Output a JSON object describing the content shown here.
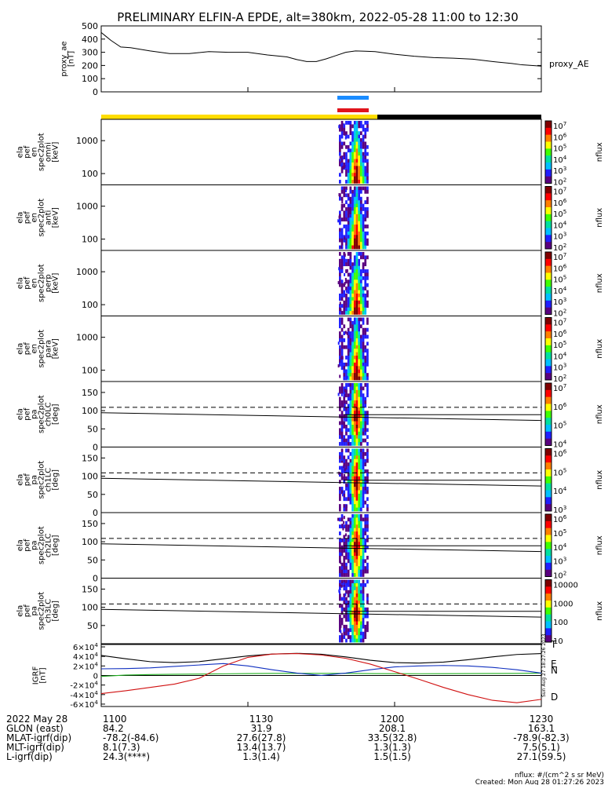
{
  "title": "PRELIMINARY ELFIN-A EPDE, alt=380km, 2022-05-28 11:00 to 12:30",
  "footer": {
    "units": "nflux: #/(cm^2 s sr MeV)",
    "created": "Created: Mon Aug 28 01:27:26 2023",
    "side_stamp": "Sun Aug 27 18:27:26 2023"
  },
  "colors": {
    "yellow_bar": "#ffdd00",
    "black_bar": "#000000",
    "blue_bar": "#1a8cff",
    "red_bar": "#e0141c",
    "trace_black": "#000000",
    "trace_blue": "#1030c0",
    "trace_green": "#22b022",
    "trace_red": "#d01010",
    "colorbar": [
      "#ffffff",
      "#5a0080",
      "#2020ff",
      "#00c0ff",
      "#00e0a0",
      "#40ff00",
      "#ffff00",
      "#ff8000",
      "#ff0000",
      "#800000"
    ]
  },
  "time_axis": {
    "ticks": [
      "1100",
      "1130",
      "1200",
      "1230"
    ],
    "rows": [
      {
        "label": "2022 May 28",
        "values": [
          "1100",
          "1130",
          "1200",
          "1230"
        ]
      },
      {
        "label": "GLON (east)",
        "values": [
          "84.2",
          "31.9",
          "208.1",
          "163.1"
        ]
      },
      {
        "label": "MLAT-igrf(dip)",
        "values": [
          "-78.2(-84.6)",
          "27.6(27.8)",
          "33.5(32.8)",
          "-78.9(-82.3)"
        ]
      },
      {
        "label": "MLT-igrf(dip)",
        "values": [
          "8.1(7.3)",
          "13.4(13.7)",
          "1.3(1.3)",
          "7.5(5.1)"
        ]
      },
      {
        "label": "L-igrf(dip)",
        "values": [
          "24.3(****)",
          "1.3(1.4)",
          "1.5(1.5)",
          "27.1(59.5)"
        ]
      }
    ]
  },
  "chart_data": [
    {
      "type": "line",
      "name": "proxy_ae",
      "ylabel_lines": [
        "proxy_ae",
        "[nT]"
      ],
      "right_label": "proxy_AE",
      "ylim": [
        0,
        500
      ],
      "yticks": [
        "500",
        "400",
        "300",
        "200",
        "100",
        "0"
      ],
      "x_minutes": [
        0,
        1,
        2,
        4,
        6,
        10,
        14,
        18,
        22,
        26,
        30,
        34,
        38,
        40,
        42,
        44,
        46,
        48,
        50,
        52,
        54,
        56,
        60,
        64,
        68,
        72,
        76,
        80,
        84,
        86,
        90
      ],
      "values": [
        450,
        420,
        390,
        340,
        335,
        310,
        290,
        290,
        305,
        300,
        300,
        280,
        265,
        245,
        230,
        230,
        250,
        275,
        300,
        310,
        308,
        305,
        285,
        270,
        260,
        255,
        248,
        230,
        215,
        205,
        195
      ]
    },
    {
      "type": "heatmap",
      "ylabel_lines": [
        "ela",
        "pef",
        "en",
        "spec2plot",
        "omni",
        "[keV]"
      ],
      "yticks": [
        "1000",
        "100"
      ],
      "scale": "log",
      "colorbar_label": "nflux",
      "colorbar_ticks": [
        "10^7",
        "10^6",
        "10^5",
        "10^4",
        "10^3",
        "10^2"
      ]
    },
    {
      "type": "heatmap",
      "ylabel_lines": [
        "ela",
        "pef",
        "en",
        "spec2plot",
        "anti",
        "[keV]"
      ],
      "yticks": [
        "1000",
        "100"
      ],
      "scale": "log",
      "colorbar_label": "nflux",
      "colorbar_ticks": [
        "10^7",
        "10^6",
        "10^5",
        "10^4",
        "10^3",
        "10^2"
      ]
    },
    {
      "type": "heatmap",
      "ylabel_lines": [
        "ela",
        "pef",
        "en",
        "spec2plot",
        "perp",
        "[keV]"
      ],
      "yticks": [
        "1000",
        "100"
      ],
      "scale": "log",
      "colorbar_label": "nflux",
      "colorbar_ticks": [
        "10^7",
        "10^6",
        "10^5",
        "10^4",
        "10^3",
        "10^2"
      ]
    },
    {
      "type": "heatmap",
      "ylabel_lines": [
        "ela",
        "pef",
        "en",
        "spec2plot",
        "para",
        "[keV]"
      ],
      "yticks": [
        "1000",
        "100"
      ],
      "scale": "log",
      "colorbar_label": "nflux",
      "colorbar_ticks": [
        "10^7",
        "10^6",
        "10^5",
        "10^4",
        "10^3",
        "10^2"
      ]
    },
    {
      "type": "heatmap",
      "ylabel_lines": [
        "ela",
        "pef",
        "pa",
        "spec2plot",
        "ch0LC",
        "[deg]"
      ],
      "yticks": [
        "150",
        "100",
        "50",
        "0"
      ],
      "ylim": [
        0,
        180
      ],
      "colorbar_label": "nflux",
      "colorbar_ticks": [
        "10^7",
        "10^6",
        "10^5",
        "10^4"
      ]
    },
    {
      "type": "heatmap",
      "ylabel_lines": [
        "ela",
        "pef",
        "pa",
        "spec2plot",
        "ch1LC",
        "[deg]"
      ],
      "yticks": [
        "150",
        "100",
        "50",
        "0"
      ],
      "ylim": [
        0,
        180
      ],
      "colorbar_label": "nflux",
      "colorbar_ticks": [
        "10^6",
        "10^5",
        "10^4",
        "10^3"
      ]
    },
    {
      "type": "heatmap",
      "ylabel_lines": [
        "ela",
        "pef",
        "pa",
        "spec2plot",
        "ch2LC",
        "[deg]"
      ],
      "yticks": [
        "150",
        "100",
        "50",
        "0"
      ],
      "ylim": [
        0,
        180
      ],
      "colorbar_label": "nflux",
      "colorbar_ticks": [
        "10^6",
        "10^5",
        "10^4",
        "10^3",
        "10^2"
      ]
    },
    {
      "type": "heatmap",
      "ylabel_lines": [
        "ela",
        "pef",
        "pa",
        "spec2plot",
        "ch3LC",
        "[deg]"
      ],
      "yticks": [
        "150",
        "100",
        "50"
      ],
      "ylim": [
        0,
        180
      ],
      "colorbar_label": "nflux",
      "colorbar_ticks": [
        "10000",
        "1000",
        "100",
        "10"
      ]
    },
    {
      "type": "line",
      "name": "IGRF",
      "ylabel_lines": [
        "IGRF",
        "[nT]"
      ],
      "ylim": [
        -65000,
        65000
      ],
      "yticks": [
        "6×10^4",
        "4×10^4",
        "2×10^4",
        "0",
        "-2×10^4",
        "-4×10^4",
        "-6×10^4"
      ],
      "x_minutes": [
        0,
        5,
        10,
        15,
        20,
        25,
        30,
        35,
        40,
        45,
        50,
        55,
        60,
        65,
        70,
        75,
        80,
        85,
        90
      ],
      "series": [
        {
          "name": "T",
          "values": [
            42000,
            35000,
            29000,
            27000,
            29000,
            35000,
            41000,
            45000,
            46500,
            44500,
            39000,
            32000,
            27000,
            26000,
            28000,
            33000,
            39000,
            44000,
            46000
          ]
        },
        {
          "name": "E",
          "values": [
            -2000,
            1000,
            2000,
            2500,
            3000,
            3500,
            4000,
            4500,
            4500,
            4500,
            4500,
            4000,
            3800,
            3700,
            3800,
            4000,
            4200,
            4500,
            4800
          ]
        },
        {
          "name": "N",
          "values": [
            14000,
            14500,
            16000,
            19000,
            22000,
            25000,
            20000,
            12000,
            5000,
            100,
            5000,
            12000,
            18000,
            20000,
            21000,
            20000,
            17000,
            12000,
            5000
          ]
        },
        {
          "name": "D",
          "values": [
            -38000,
            -32000,
            -25000,
            -18000,
            -6000,
            20000,
            38000,
            45000,
            46000,
            43000,
            36000,
            24000,
            8000,
            -8000,
            -25000,
            -40000,
            -52000,
            -57000,
            -50000
          ]
        }
      ]
    }
  ]
}
